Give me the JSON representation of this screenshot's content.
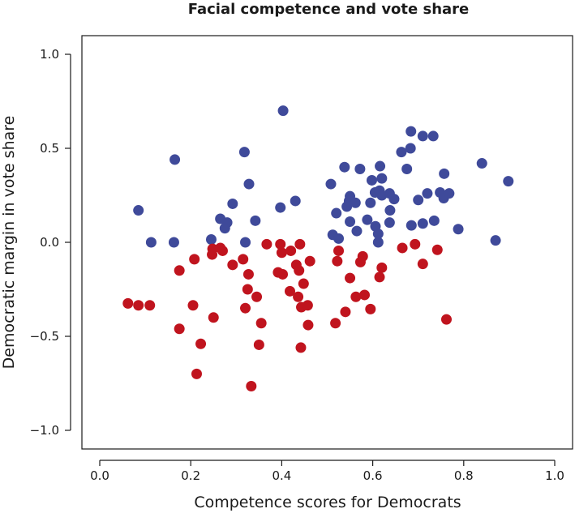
{
  "chart_data": {
    "type": "scatter",
    "title": "Facial competence and vote share",
    "xlabel": "Competence scores for Democrats",
    "ylabel": "Democratic margin in vote share",
    "xlim": [
      0.0,
      1.0
    ],
    "ylim": [
      -1.0,
      1.0
    ],
    "xticks": [
      "0.0",
      "0.2",
      "0.4",
      "0.6",
      "0.8",
      "1.0"
    ],
    "yticks": [
      "−1.0",
      "−0.5",
      "0.0",
      "0.5",
      "1.0"
    ],
    "grid": false,
    "series": [
      {
        "color": "#3f4a9a",
        "points": [
          [
            0.085,
            0.17
          ],
          [
            0.113,
            0.0
          ],
          [
            0.163,
            0.0
          ],
          [
            0.165,
            0.44
          ],
          [
            0.245,
            0.015
          ],
          [
            0.265,
            0.125
          ],
          [
            0.275,
            0.075
          ],
          [
            0.28,
            0.105
          ],
          [
            0.292,
            0.205
          ],
          [
            0.318,
            0.48
          ],
          [
            0.32,
            0.0
          ],
          [
            0.328,
            0.31
          ],
          [
            0.342,
            0.115
          ],
          [
            0.397,
            0.185
          ],
          [
            0.403,
            0.7
          ],
          [
            0.43,
            0.22
          ],
          [
            0.508,
            0.31
          ],
          [
            0.512,
            0.04
          ],
          [
            0.52,
            0.155
          ],
          [
            0.525,
            0.02
          ],
          [
            0.538,
            0.4
          ],
          [
            0.543,
            0.19
          ],
          [
            0.548,
            0.22
          ],
          [
            0.55,
            0.245
          ],
          [
            0.55,
            0.11
          ],
          [
            0.562,
            0.21
          ],
          [
            0.565,
            0.06
          ],
          [
            0.572,
            0.39
          ],
          [
            0.588,
            0.12
          ],
          [
            0.595,
            0.21
          ],
          [
            0.598,
            0.33
          ],
          [
            0.605,
            0.265
          ],
          [
            0.606,
            0.085
          ],
          [
            0.612,
            0.045
          ],
          [
            0.612,
            0.0
          ],
          [
            0.615,
            0.275
          ],
          [
            0.616,
            0.405
          ],
          [
            0.62,
            0.34
          ],
          [
            0.62,
            0.25
          ],
          [
            0.637,
            0.105
          ],
          [
            0.637,
            0.26
          ],
          [
            0.638,
            0.17
          ],
          [
            0.647,
            0.23
          ],
          [
            0.663,
            0.48
          ],
          [
            0.675,
            0.39
          ],
          [
            0.683,
            0.5
          ],
          [
            0.684,
            0.59
          ],
          [
            0.685,
            0.09
          ],
          [
            0.7,
            0.225
          ],
          [
            0.71,
            0.565
          ],
          [
            0.71,
            0.1
          ],
          [
            0.72,
            0.26
          ],
          [
            0.733,
            0.565
          ],
          [
            0.735,
            0.115
          ],
          [
            0.748,
            0.265
          ],
          [
            0.756,
            0.235
          ],
          [
            0.757,
            0.365
          ],
          [
            0.768,
            0.26
          ],
          [
            0.788,
            0.07
          ],
          [
            0.84,
            0.42
          ],
          [
            0.87,
            0.01
          ],
          [
            0.898,
            0.325
          ]
        ]
      },
      {
        "color": "#c0141e",
        "points": [
          [
            0.062,
            -0.325
          ],
          [
            0.085,
            -0.335
          ],
          [
            0.11,
            -0.335
          ],
          [
            0.175,
            -0.15
          ],
          [
            0.175,
            -0.46
          ],
          [
            0.205,
            -0.335
          ],
          [
            0.208,
            -0.09
          ],
          [
            0.213,
            -0.7
          ],
          [
            0.222,
            -0.54
          ],
          [
            0.247,
            -0.065
          ],
          [
            0.248,
            -0.035
          ],
          [
            0.25,
            -0.4
          ],
          [
            0.265,
            -0.03
          ],
          [
            0.27,
            -0.045
          ],
          [
            0.292,
            -0.12
          ],
          [
            0.315,
            -0.09
          ],
          [
            0.32,
            -0.35
          ],
          [
            0.325,
            -0.25
          ],
          [
            0.327,
            -0.17
          ],
          [
            0.333,
            -0.765
          ],
          [
            0.345,
            -0.29
          ],
          [
            0.35,
            -0.545
          ],
          [
            0.355,
            -0.43
          ],
          [
            0.367,
            -0.01
          ],
          [
            0.392,
            -0.16
          ],
          [
            0.397,
            -0.01
          ],
          [
            0.4,
            -0.055
          ],
          [
            0.402,
            -0.17
          ],
          [
            0.418,
            -0.26
          ],
          [
            0.42,
            -0.045
          ],
          [
            0.432,
            -0.12
          ],
          [
            0.436,
            -0.29
          ],
          [
            0.438,
            -0.15
          ],
          [
            0.44,
            -0.01
          ],
          [
            0.442,
            -0.56
          ],
          [
            0.443,
            -0.345
          ],
          [
            0.448,
            -0.22
          ],
          [
            0.457,
            -0.335
          ],
          [
            0.458,
            -0.44
          ],
          [
            0.462,
            -0.1
          ],
          [
            0.518,
            -0.43
          ],
          [
            0.522,
            -0.1
          ],
          [
            0.525,
            -0.045
          ],
          [
            0.54,
            -0.37
          ],
          [
            0.55,
            -0.19
          ],
          [
            0.563,
            -0.29
          ],
          [
            0.573,
            -0.105
          ],
          [
            0.578,
            -0.075
          ],
          [
            0.582,
            -0.28
          ],
          [
            0.595,
            -0.355
          ],
          [
            0.615,
            -0.185
          ],
          [
            0.62,
            -0.135
          ],
          [
            0.665,
            -0.03
          ],
          [
            0.693,
            -0.01
          ],
          [
            0.71,
            -0.115
          ],
          [
            0.742,
            -0.04
          ],
          [
            0.762,
            -0.41
          ]
        ]
      }
    ]
  }
}
